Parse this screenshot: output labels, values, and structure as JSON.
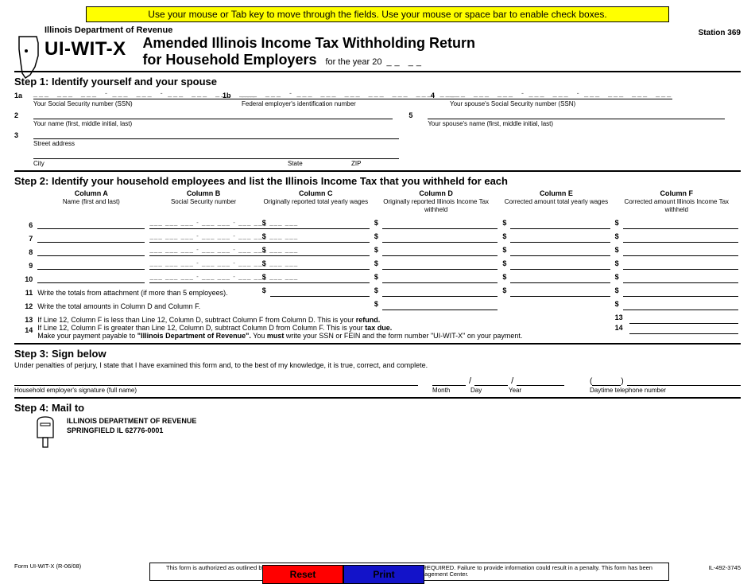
{
  "banner": "Use your mouse or Tab key to move through the fields. Use your mouse or space bar to enable check boxes.",
  "header": {
    "department": "Illinois Department of Revenue",
    "station": "Station 369",
    "form_code": "UI-WIT-X",
    "title_line1": "Amended Illinois Income Tax Withholding Return",
    "title_line2": "for Household Employers",
    "for_year_label": "for the year  20",
    "year_dashes": "__  __"
  },
  "step1": {
    "heading": "Step 1:  Identify yourself and your spouse",
    "f1a_no": "1a",
    "f1a_cap": "Your Social Security number (SSN)",
    "f1b_no": "1b",
    "f1b_cap": "Federal employer's identification number",
    "f4_no": "4",
    "f4_cap": "Your spouse's Social Security number (SSN)",
    "f2_no": "2",
    "f2_cap": "Your name (first, middle initial, last)",
    "f5_no": "5",
    "f5_cap": "Your spouse's name (first, middle initial, last)",
    "f3_no": "3",
    "f3_cap": "Street address",
    "city_cap": "City",
    "state_cap": "State",
    "zip_cap": "ZIP",
    "ssn_pattern": "___  ___  ___  - ___  ___  - ___  ___  ___  ___",
    "fein_pattern": "___  ___  - ___  ___  ___  ___  ___  ___  ___"
  },
  "step2": {
    "heading": "Step 2:  Identify your household employees and list the Illinois Income Tax that you withheld for each",
    "colA_h": "Column A",
    "colA_s": "Name (first and last)",
    "colB_h": "Column B",
    "colB_s": "Social Security number",
    "colC_h": "Column C",
    "colC_s": "Originally reported total yearly wages",
    "colD_h": "Column D",
    "colD_s": "Originally reported Illinois Income Tax withheld",
    "colE_h": "Column E",
    "colE_s": "Corrected amount total yearly wages",
    "colF_h": "Column F",
    "colF_s": "Corrected amount Illinois Income Tax withheld",
    "rows": [
      "6",
      "7",
      "8",
      "9",
      "10"
    ],
    "ssn_cell_pattern": "___ ___ ___ - ___ ___ - ___ ___ ___ ___",
    "l11_no": "11",
    "l11_text": "Write the totals from attachment (if more than 5 employees).",
    "l12_no": "12",
    "l12_text": "Write the total amounts in Column D and Column F.",
    "l13_no": "13",
    "l13_text": "If Line 12, Column F is less than Line 12, Column D, subtract Column F from Column D. This is your ",
    "l13_bold": "refund.",
    "l14_no": "14",
    "l14_text": "If Line 12, Column F is greater than Line 12, Column D, subtract Column D from Column F. This is your ",
    "l14_bold": "tax due.",
    "l14_pay1": "Make your payment payable to ",
    "l14_pay_bold": "\"Illinois Department of Revenue\".",
    "l14_pay2": " You ",
    "l14_must": "must",
    "l14_pay3": " write your SSN or FEIN and the form number \"UI-WIT-X\" on your payment."
  },
  "step3": {
    "heading": "Step 3:  Sign below",
    "perjury": "Under penalties of perjury, I state that I have examined this form and, to the best of my knowledge, it is true, correct, and complete.",
    "sig_cap": "Household employer's signature (full name)",
    "month": "Month",
    "day": "Day",
    "year": "Year",
    "phone_cap": "Daytime telephone number",
    "phone_paren_open": "(",
    "phone_paren_close": ")"
  },
  "step4": {
    "heading": "Step 4:  Mail to",
    "addr1": "ILLINOIS DEPARTMENT OF REVENUE",
    "addr2": "SPRINGFIELD IL  62776-0001"
  },
  "footer": {
    "form_rev": "Form UI-WIT-X (R-06/08)",
    "legal": "This form is authorized as outlined by the Illinois Income Tax Act. Disclosure of this information is REQUIRED. Failure to provide information could result in a penalty. This form has been approved by the Forms Management Center.",
    "docnum": "IL-492-3745"
  },
  "buttons": {
    "reset": "Reset",
    "print": "Print"
  },
  "colors": {
    "banner_bg": "#ffff00",
    "reset_bg": "#ff0000",
    "print_bg": "#1313c9"
  }
}
